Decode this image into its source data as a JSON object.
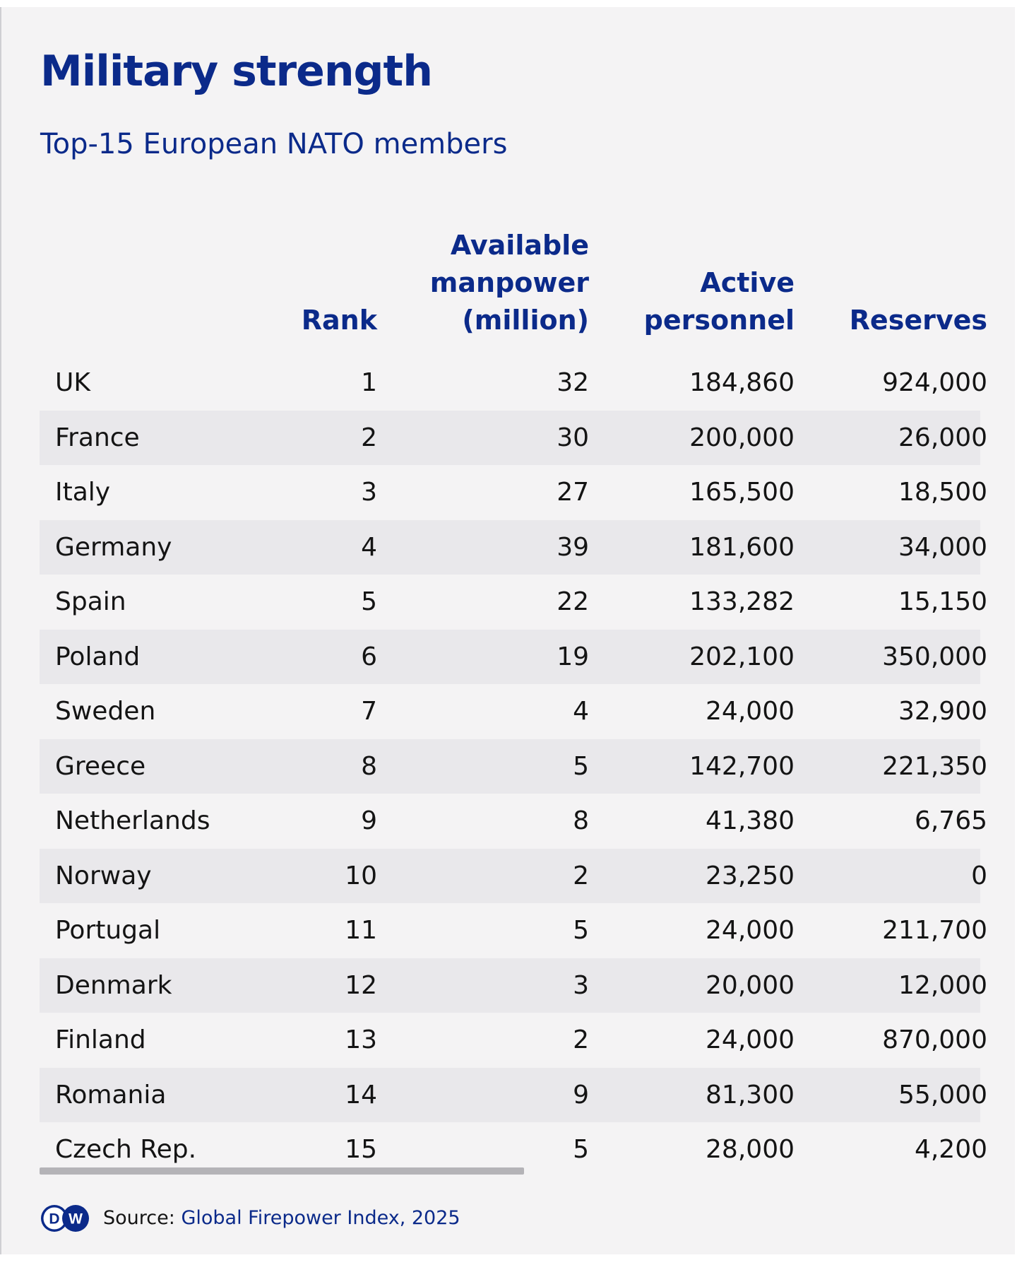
{
  "chart_data": {
    "type": "table",
    "title": "Military strength",
    "subtitle": "Top-15 European NATO members",
    "columns": [
      {
        "key": "country",
        "label": ""
      },
      {
        "key": "rank",
        "label_lines": [
          "Rank"
        ]
      },
      {
        "key": "manpower",
        "label_lines": [
          "Available",
          "manpower",
          "(million)"
        ]
      },
      {
        "key": "active",
        "label_lines": [
          "Active",
          "personnel"
        ]
      },
      {
        "key": "reserves",
        "label_lines": [
          "Reserves"
        ]
      }
    ],
    "rows": [
      {
        "country": "UK",
        "rank": "1",
        "manpower": "32",
        "active": "184,860",
        "reserves": "924,000"
      },
      {
        "country": "France",
        "rank": "2",
        "manpower": "30",
        "active": "200,000",
        "reserves": "26,000"
      },
      {
        "country": "Italy",
        "rank": "3",
        "manpower": "27",
        "active": "165,500",
        "reserves": "18,500"
      },
      {
        "country": "Germany",
        "rank": "4",
        "manpower": "39",
        "active": "181,600",
        "reserves": "34,000"
      },
      {
        "country": "Spain",
        "rank": "5",
        "manpower": "22",
        "active": "133,282",
        "reserves": "15,150"
      },
      {
        "country": "Poland",
        "rank": "6",
        "manpower": "19",
        "active": "202,100",
        "reserves": "350,000"
      },
      {
        "country": "Sweden",
        "rank": "7",
        "manpower": "4",
        "active": "24,000",
        "reserves": "32,900"
      },
      {
        "country": "Greece",
        "rank": "8",
        "manpower": "5",
        "active": "142,700",
        "reserves": "221,350"
      },
      {
        "country": "Netherlands",
        "rank": "9",
        "manpower": "8",
        "active": "41,380",
        "reserves": "6,765"
      },
      {
        "country": "Norway",
        "rank": "10",
        "manpower": "2",
        "active": "23,250",
        "reserves": "0"
      },
      {
        "country": "Portugal",
        "rank": "11",
        "manpower": "5",
        "active": "24,000",
        "reserves": "211,700"
      },
      {
        "country": "Denmark",
        "rank": "12",
        "manpower": "3",
        "active": "20,000",
        "reserves": "12,000"
      },
      {
        "country": "Finland",
        "rank": "13",
        "manpower": "2",
        "active": "24,000",
        "reserves": "870,000"
      },
      {
        "country": "Romania",
        "rank": "14",
        "manpower": "9",
        "active": "81,300",
        "reserves": "55,000"
      },
      {
        "country": "Czech Rep.",
        "rank": "15",
        "manpower": "5",
        "active": "28,000",
        "reserves": "4,200"
      }
    ]
  },
  "footer": {
    "logo": "DW",
    "logo_icon": "dw-logo",
    "source_label": "Source:",
    "source_value": "Global Firepower Index, 2025"
  },
  "colors": {
    "title": "#0b2a8a",
    "background": "#f4f3f4",
    "row_alt": "#e9e8eb",
    "text": "#141414"
  }
}
